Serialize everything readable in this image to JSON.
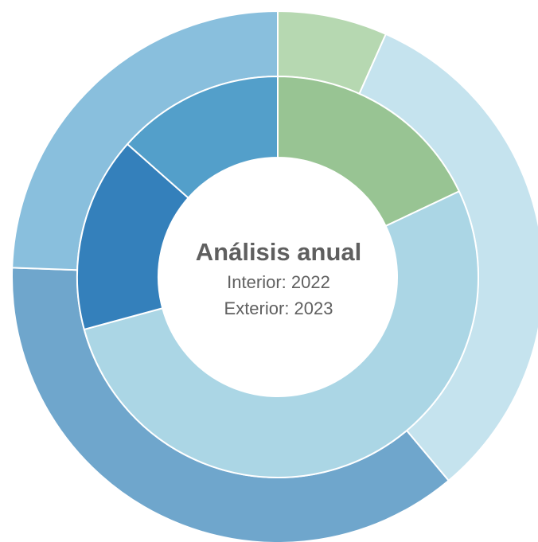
{
  "chart_data": {
    "type": "pie",
    "variant": "nested-donut",
    "center": {
      "title": "Análisis anual",
      "line1": "Interior: 2022",
      "line2": "Exterior: 2023"
    },
    "series": [
      {
        "ring": "inner",
        "start_angle_deg": 0,
        "slices": [
          {
            "value": 16,
            "color": "#98c493"
          },
          {
            "value": 47,
            "color": "#abd6e5"
          },
          {
            "value": 14,
            "color": "#3480bb"
          },
          {
            "value": 12,
            "color": "#539fca"
          }
        ]
      },
      {
        "ring": "outer",
        "start_angle_deg": 0,
        "slices": [
          {
            "value": 6,
            "color": "#b6d8b1"
          },
          {
            "value": 29,
            "color": "#c5e3ee"
          },
          {
            "value": 33,
            "color": "#6fa6cc"
          },
          {
            "value": 22,
            "color": "#89bfdd"
          }
        ]
      }
    ],
    "separator_color": "#ffffff",
    "legend": "none"
  }
}
